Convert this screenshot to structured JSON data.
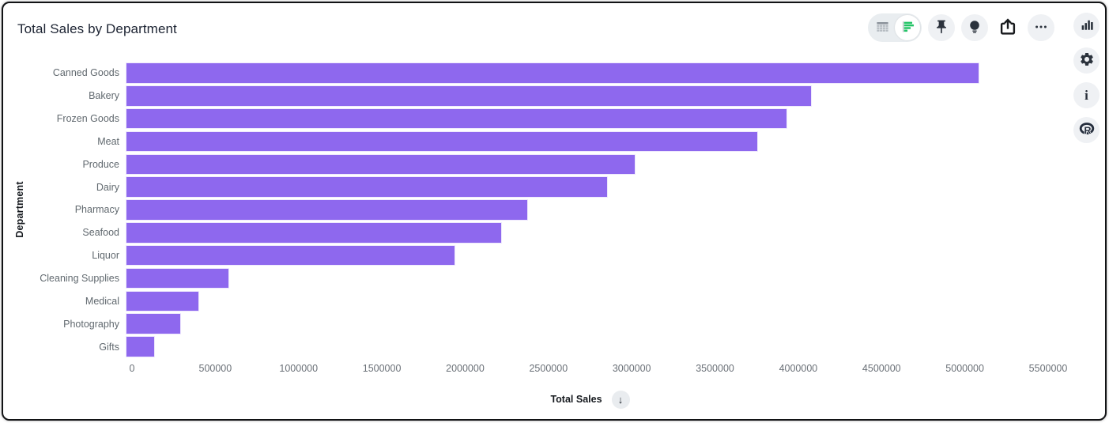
{
  "header": {
    "title": "Total Sales by Department"
  },
  "toolbar": {
    "view_toggle": {
      "options": [
        {
          "name": "table-view",
          "icon": "table-icon",
          "selected": false
        },
        {
          "name": "chart-view",
          "icon": "hbar-chart-icon",
          "selected": true
        }
      ]
    },
    "buttons": [
      {
        "name": "pin",
        "icon": "pushpin-icon"
      },
      {
        "name": "insights",
        "icon": "lightbulb-icon"
      },
      {
        "name": "share",
        "icon": "share-export-icon"
      },
      {
        "name": "more",
        "icon": "ellipsis-icon"
      }
    ]
  },
  "rail": {
    "buttons": [
      {
        "name": "chart-options",
        "icon": "column-chart-icon"
      },
      {
        "name": "settings",
        "icon": "gear-icon"
      },
      {
        "name": "info",
        "icon": "info-icon",
        "glyph": "i"
      },
      {
        "name": "r-language",
        "icon": "r-logo-icon",
        "glyph": "R"
      }
    ]
  },
  "chart_data": {
    "type": "bar",
    "orientation": "horizontal",
    "title": "Total Sales by Department",
    "xlabel": "Total Sales",
    "ylabel": "Department",
    "categories": [
      "Canned Goods",
      "Bakery",
      "Frozen Goods",
      "Meat",
      "Produce",
      "Dairy",
      "Pharmacy",
      "Seafood",
      "Liquor",
      "Cleaning Supplies",
      "Medical",
      "Photography",
      "Gifts"
    ],
    "values": [
      5125000,
      4120000,
      3970000,
      3795000,
      3060000,
      2895000,
      2415000,
      2260000,
      1980000,
      620000,
      440000,
      330000,
      175000
    ],
    "xlim": [
      0,
      5500000
    ],
    "xticks": [
      0,
      500000,
      1000000,
      1500000,
      2000000,
      2500000,
      3000000,
      3500000,
      4000000,
      4500000,
      5000000,
      5500000
    ],
    "grid": false,
    "legend": "none",
    "sort_direction_glyph": "↓",
    "colors": {
      "bar": "#8e68ee",
      "toggle_active_green": "#23c366",
      "icon_dark": "#2b323c",
      "icon_gray": "#9aa1a8",
      "button_bg": "#eff1f4",
      "pill_bg": "#e9edf0",
      "title_text": "#1d2433",
      "axis_text": "#6a7077",
      "category_text": "#61696f"
    }
  }
}
